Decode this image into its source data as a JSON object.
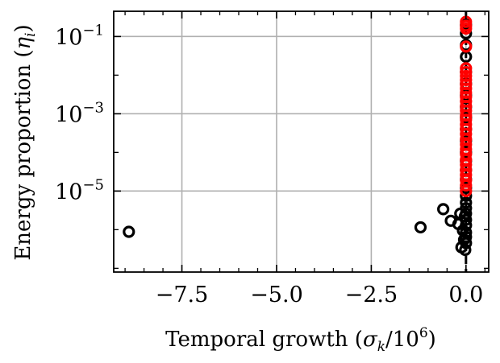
{
  "chart_data": {
    "type": "scatter",
    "title": "",
    "xlabel_parts": {
      "pre": "Temporal growth (",
      "sym": "σ",
      "sub": "k",
      "post": "/10",
      "sup": "6",
      "close": ")"
    },
    "ylabel_parts": {
      "pre": "Energy proportion (",
      "sym": "η",
      "sub": "i",
      "close": ")"
    },
    "x_scale": "linear",
    "y_scale": "log",
    "xlim": [
      -9.3,
      0.6
    ],
    "ylim": [
      8e-08,
      0.45
    ],
    "grid": true,
    "x_ticks": [
      {
        "value": -7.5,
        "label": "−7.5"
      },
      {
        "value": -5.0,
        "label": "−5.0"
      },
      {
        "value": -2.5,
        "label": "−2.5"
      },
      {
        "value": 0.0,
        "label": "0.0"
      }
    ],
    "y_ticks": [
      {
        "value": 0.1,
        "base": "10",
        "exp": "−1"
      },
      {
        "value": 0.001,
        "base": "10",
        "exp": "−3"
      },
      {
        "value": 1e-05,
        "base": "10",
        "exp": "−5"
      }
    ],
    "vline_x": 0.0,
    "series": [
      {
        "color": "#000000",
        "points": [
          {
            "x": -8.9,
            "y": 8.8e-07
          },
          {
            "x": -1.2,
            "y": 1.15e-06
          },
          {
            "x": -0.6,
            "y": 3.4e-06
          },
          {
            "x": -0.4,
            "y": 1.7e-06
          },
          {
            "x": -0.2,
            "y": 1.4e-06
          },
          {
            "x": -0.15,
            "y": 2.6e-06
          },
          {
            "x": -0.12,
            "y": 3.5e-07
          },
          {
            "x": -0.08,
            "y": 9.5e-07
          },
          {
            "x": -0.05,
            "y": 5.5e-07
          },
          {
            "x": -0.03,
            "y": 2.2e-06
          },
          {
            "x": -0.02,
            "y": 3e-07
          },
          {
            "x": 0.0,
            "y": 4.5e-07
          },
          {
            "x": 0.0,
            "y": 6.5e-07
          },
          {
            "x": 0.0,
            "y": 8.5e-07
          },
          {
            "x": 0.0,
            "y": 1.3e-06
          },
          {
            "x": 0.0,
            "y": 1.8e-06
          },
          {
            "x": 0.0,
            "y": 2.6e-06
          },
          {
            "x": 0.0,
            "y": 3.6e-06
          },
          {
            "x": 0.0,
            "y": 5e-06
          },
          {
            "x": 0.0,
            "y": 7.5e-06
          },
          {
            "x": 0.0,
            "y": 1.2e-05
          },
          {
            "x": 0.0,
            "y": 2e-05
          },
          {
            "x": 0.0,
            "y": 3.5e-05
          },
          {
            "x": 0.0,
            "y": 6e-05
          },
          {
            "x": 0.0,
            "y": 0.0001
          },
          {
            "x": 0.0,
            "y": 0.0002
          },
          {
            "x": 0.0,
            "y": 0.0004
          },
          {
            "x": 0.0,
            "y": 0.0008
          },
          {
            "x": 0.0,
            "y": 0.0015
          },
          {
            "x": 0.0,
            "y": 0.003
          },
          {
            "x": 0.0,
            "y": 0.006
          },
          {
            "x": 0.0,
            "y": 0.012
          },
          {
            "x": 0.0,
            "y": 0.03
          },
          {
            "x": 0.0,
            "y": 0.06
          },
          {
            "x": 0.0,
            "y": 0.12
          },
          {
            "x": 0.0,
            "y": 0.2
          }
        ]
      },
      {
        "color": "#ff0000",
        "points": [
          {
            "x": 0.0,
            "y": 0.24
          },
          {
            "x": 0.0,
            "y": 0.19
          },
          {
            "x": 0.0,
            "y": 0.16
          },
          {
            "x": 0.0,
            "y": 0.055
          },
          {
            "x": 0.0,
            "y": 0.015
          },
          {
            "x": 0.0,
            "y": 0.012
          },
          {
            "x": 0.0,
            "y": 0.0095
          },
          {
            "x": 0.0,
            "y": 0.0075
          },
          {
            "x": 0.0,
            "y": 0.0058
          },
          {
            "x": 0.0,
            "y": 0.0045
          },
          {
            "x": 0.0,
            "y": 0.0035
          },
          {
            "x": 0.0,
            "y": 0.0027
          },
          {
            "x": 0.0,
            "y": 0.0021
          },
          {
            "x": 0.0,
            "y": 0.0016
          },
          {
            "x": 0.0,
            "y": 0.0012
          },
          {
            "x": 0.0,
            "y": 0.0009
          },
          {
            "x": 0.0,
            "y": 0.0007
          },
          {
            "x": 0.0,
            "y": 0.00053
          },
          {
            "x": 0.0,
            "y": 0.0004
          },
          {
            "x": 0.0,
            "y": 0.0003
          },
          {
            "x": 0.0,
            "y": 0.00022
          },
          {
            "x": 0.0,
            "y": 0.00016
          },
          {
            "x": 0.0,
            "y": 0.00012
          },
          {
            "x": 0.0,
            "y": 9e-05
          },
          {
            "x": 0.0,
            "y": 6.5e-05
          },
          {
            "x": 0.0,
            "y": 4.8e-05
          },
          {
            "x": 0.0,
            "y": 3.5e-05
          },
          {
            "x": 0.0,
            "y": 2.6e-05
          },
          {
            "x": 0.0,
            "y": 1.9e-05
          },
          {
            "x": 0.0,
            "y": 1.4e-05
          },
          {
            "x": 0.0,
            "y": 1e-05
          }
        ]
      }
    ]
  }
}
